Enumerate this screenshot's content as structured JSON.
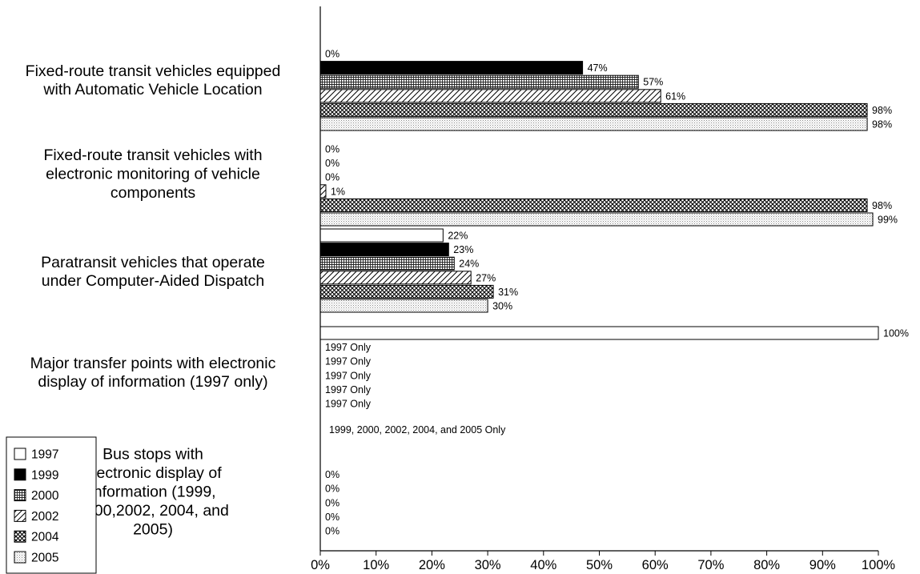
{
  "chart_data": {
    "type": "bar",
    "orientation": "horizontal",
    "title": "",
    "xlabel": "",
    "ylabel": "",
    "xlim": [
      0,
      100
    ],
    "x_ticks": [
      "0%",
      "10%",
      "20%",
      "30%",
      "40%",
      "50%",
      "60%",
      "70%",
      "80%",
      "90%",
      "100%"
    ],
    "grid": false,
    "legend_position": "bottom-left",
    "categories": [
      "Fixed-route transit vehicles equipped with Automatic Vehicle Location",
      "Fixed-route transit vehicles with electronic monitoring of vehicle components",
      "Paratransit vehicles that operate under Computer-Aided Dispatch",
      "Major transfer points with electronic display of information (1997 only)",
      "Bus stops with electronic display of information (1999, 2000,2002, 2004, and 2005)"
    ],
    "category_label_lines": [
      [
        "Fixed-route transit vehicles equipped",
        "with Automatic Vehicle Location"
      ],
      [
        "Fixed-route transit vehicles with",
        "electronic monitoring of vehicle",
        "components"
      ],
      [
        "Paratransit vehicles that operate",
        "under Computer-Aided Dispatch"
      ],
      [
        "Major transfer points with electronic",
        "display of information (1997 only)"
      ],
      [
        "Bus stops with",
        "electronic display of",
        "information (1999,",
        "2000,2002, 2004, and",
        "2005)"
      ]
    ],
    "series": [
      {
        "name": "1997",
        "pattern": "solid-white",
        "values": [
          0,
          0,
          22,
          100,
          null
        ],
        "labels": [
          "0%",
          "0%",
          "22%",
          "100%",
          ""
        ]
      },
      {
        "name": "1999",
        "pattern": "solid-black",
        "values": [
          47,
          0,
          23,
          null,
          0
        ],
        "labels": [
          "47%",
          "0%",
          "23%",
          "1997 Only",
          "0%"
        ]
      },
      {
        "name": "2000",
        "pattern": "fine-grid",
        "values": [
          57,
          0,
          24,
          null,
          0
        ],
        "labels": [
          "57%",
          "0%",
          "24%",
          "1997 Only",
          "0%"
        ]
      },
      {
        "name": "2002",
        "pattern": "diagonal-hatch",
        "values": [
          61,
          1,
          27,
          null,
          0
        ],
        "labels": [
          "61%",
          "1%",
          "27%",
          "1997 Only",
          "0%"
        ]
      },
      {
        "name": "2004",
        "pattern": "crosshatch",
        "values": [
          98,
          98,
          31,
          null,
          0
        ],
        "labels": [
          "98%",
          "98%",
          "31%",
          "1997 Only",
          "0%"
        ]
      },
      {
        "name": "2005",
        "pattern": "light-dots",
        "values": [
          98,
          99,
          30,
          null,
          0
        ],
        "labels": [
          "98%",
          "99%",
          "30%",
          "1997 Only",
          "0%"
        ]
      }
    ],
    "annotations": [
      {
        "category_index": 4,
        "text": "1999, 2000, 2002, 2004, and 2005 Only"
      }
    ],
    "colors": {
      "axis": "#000000",
      "bar_stroke": "#000000",
      "fill": "#ffffff",
      "ink": "#000000"
    }
  }
}
